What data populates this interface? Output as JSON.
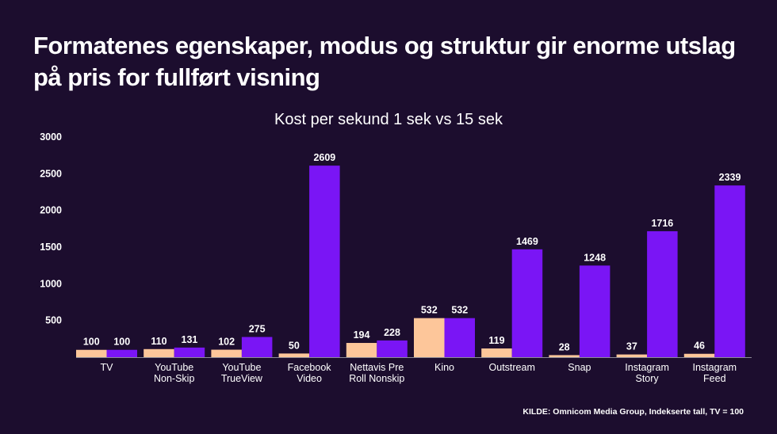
{
  "headline": "Formatenes egenskaper, modus og struktur gir enorme utslag på pris for fullført visning",
  "source": "KILDE: Omnicom Media Group, Indekserte tall, TV = 100",
  "colors": {
    "background": "#1c0d2e",
    "series_1sek": "#fdc69a",
    "series_15sek": "#7a15f5"
  },
  "chart_data": {
    "type": "bar",
    "title": "Kost per sekund 1 sek vs 15 sek",
    "categories": [
      [
        "TV"
      ],
      [
        "YouTube",
        "Non-Skip"
      ],
      [
        "YouTube",
        "TrueView"
      ],
      [
        "Facebook",
        "Video"
      ],
      [
        "Nettavis Pre",
        "Roll Nonskip"
      ],
      [
        "Kino"
      ],
      [
        "Outstream"
      ],
      [
        "Snap"
      ],
      [
        "Instagram",
        "Story"
      ],
      [
        "Instagram",
        "Feed"
      ]
    ],
    "series": [
      {
        "values": [
          100,
          110,
          102,
          50,
          194,
          532,
          119,
          28,
          37,
          46
        ]
      },
      {
        "values": [
          100,
          131,
          275,
          2609,
          228,
          532,
          1469,
          1248,
          1716,
          2339
        ]
      }
    ],
    "ylim": [
      0,
      3000
    ],
    "yticks": [
      500,
      1000,
      1500,
      2000,
      2500,
      3000
    ],
    "grid": false,
    "legend": "none"
  }
}
